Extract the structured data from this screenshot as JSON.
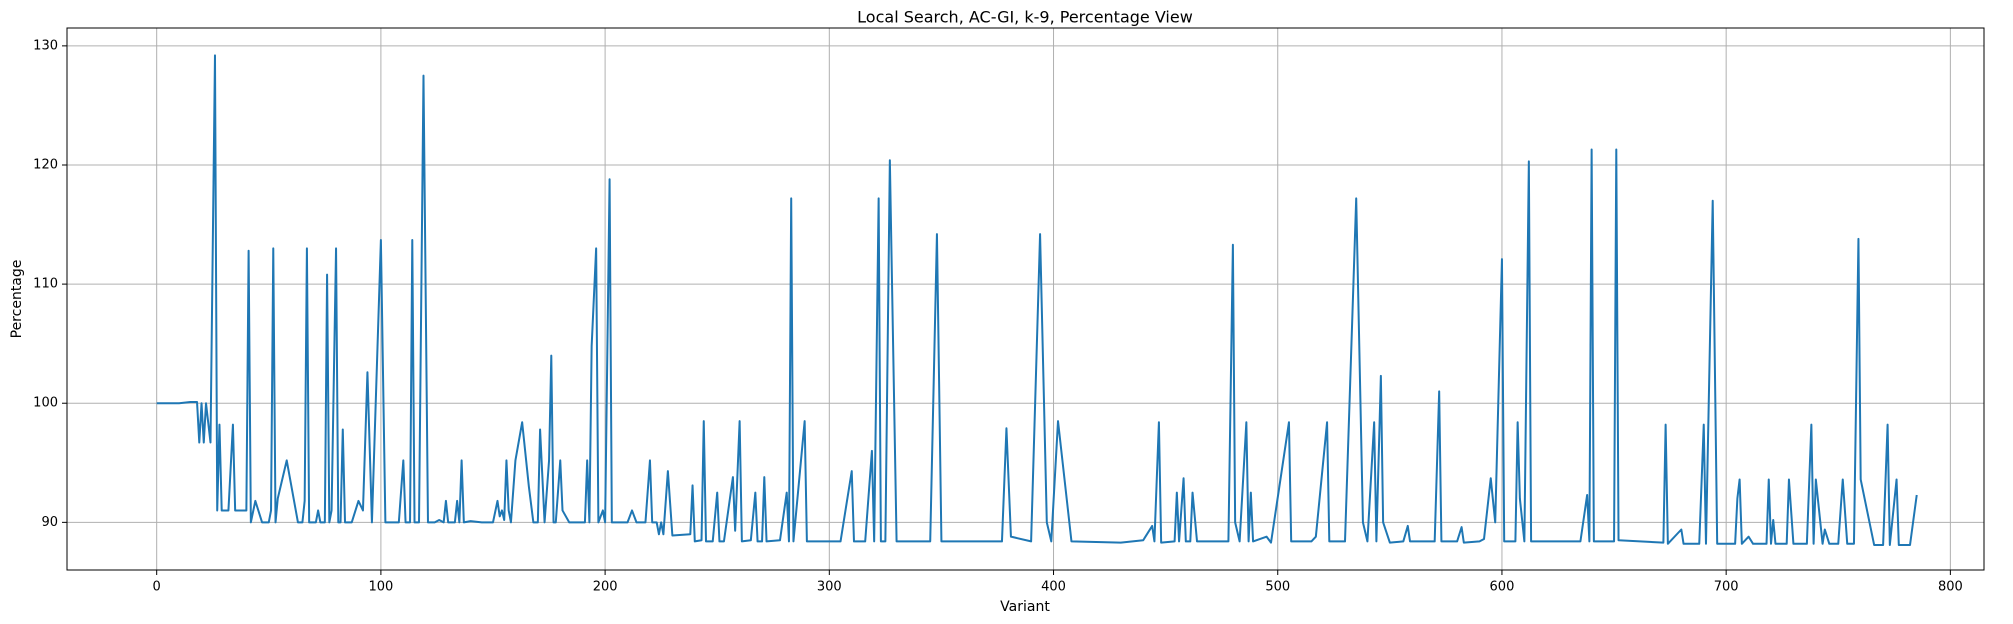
{
  "chart_data": {
    "type": "line",
    "title": "Local Search, AC-GI, k-9, Percentage View",
    "x_label": "Variant",
    "y_label": "Percentage",
    "xlim": [
      -40,
      815
    ],
    "ylim": [
      86,
      131.5
    ],
    "xticks": [
      0,
      100,
      200,
      300,
      400,
      500,
      600,
      700,
      800
    ],
    "yticks": [
      90,
      100,
      110,
      120,
      130
    ],
    "grid": true,
    "series": [
      {
        "name": "Percentage",
        "color": "#1f77b4",
        "x": [
          0,
          10,
          15,
          18,
          19,
          20,
          21,
          22,
          24,
          26,
          27,
          28,
          29,
          32,
          34,
          35,
          40,
          41,
          42,
          44,
          47,
          50,
          51,
          52,
          53,
          54,
          58,
          63,
          65,
          66,
          67,
          68,
          71,
          72,
          73,
          75,
          76,
          77,
          78,
          80,
          81,
          82,
          83,
          84,
          87,
          90,
          92,
          94,
          96,
          100,
          102,
          108,
          110,
          111,
          113,
          114,
          115,
          117,
          119,
          121,
          124,
          126,
          128,
          129,
          130,
          133,
          134,
          135,
          136,
          137,
          140,
          145,
          150,
          152,
          153,
          154,
          155,
          156,
          157,
          158,
          160,
          163,
          166,
          168,
          170,
          171,
          173,
          175,
          176,
          177,
          178,
          180,
          181,
          184,
          191,
          192,
          193,
          194,
          196,
          197,
          199,
          200,
          202,
          203,
          210,
          212,
          214,
          218,
          220,
          221,
          223,
          224,
          225,
          226,
          228,
          230,
          238,
          239,
          240,
          243,
          244,
          245,
          248,
          250,
          251,
          253,
          257,
          258,
          260,
          261,
          265,
          267,
          268,
          270,
          271,
          272,
          278,
          281,
          282,
          283,
          284,
          289,
          290,
          305,
          310,
          311,
          316,
          319,
          320,
          322,
          323,
          325,
          327,
          330,
          345,
          348,
          350,
          377,
          379,
          381,
          390,
          394,
          397,
          399,
          402,
          408,
          430,
          440,
          444,
          445,
          447,
          448,
          454,
          455,
          456,
          458,
          459,
          461,
          462,
          464,
          478,
          480,
          481,
          483,
          486,
          487,
          488,
          489,
          495,
          497,
          505,
          506,
          515,
          517,
          522,
          523,
          530,
          535,
          538,
          540,
          543,
          544,
          546,
          547,
          550,
          556,
          558,
          559,
          570,
          572,
          573,
          580,
          582,
          583,
          590,
          592,
          595,
          597,
          600,
          601,
          606,
          607,
          608,
          610,
          612,
          613,
          635,
          638,
          639,
          640,
          641,
          650,
          651,
          652,
          672,
          673,
          674,
          680,
          681,
          688,
          690,
          691,
          694,
          696,
          704,
          705,
          706,
          707,
          710,
          712,
          718,
          719,
          720,
          721,
          722,
          727,
          728,
          730,
          736,
          738,
          739,
          740,
          743,
          744,
          746,
          750,
          752,
          754,
          757,
          759,
          760,
          766,
          770,
          772,
          773,
          776,
          777,
          782,
          785
        ],
        "values": [
          100,
          100,
          100.1,
          100.1,
          96.7,
          100,
          96.7,
          100,
          96.7,
          129.2,
          91,
          98.2,
          91,
          91,
          98.2,
          91,
          91,
          112.8,
          90,
          91.8,
          90,
          90,
          91,
          113,
          90,
          92,
          95.2,
          90,
          90,
          91.8,
          113,
          90,
          90,
          91,
          90,
          90,
          110.8,
          90,
          91,
          113,
          90,
          90,
          97.8,
          90,
          90,
          91.8,
          91,
          102.6,
          90,
          113.7,
          90,
          90,
          95.2,
          90,
          90,
          113.7,
          90,
          90,
          127.5,
          90,
          90,
          90.2,
          90,
          91.8,
          90,
          90,
          91.8,
          90,
          95.2,
          90,
          90.1,
          90,
          90,
          91.8,
          90.5,
          91,
          90.2,
          95.2,
          91,
          90,
          95.2,
          98.4,
          93,
          90,
          90,
          97.8,
          90,
          95.2,
          104,
          90,
          90,
          95.2,
          91,
          90,
          90,
          95.2,
          90,
          104.8,
          113,
          90,
          91,
          90,
          118.8,
          90,
          90,
          91,
          90,
          90,
          95.2,
          90,
          90,
          89,
          90,
          89,
          94.3,
          88.9,
          89,
          93.1,
          88.4,
          88.5,
          98.5,
          88.4,
          88.4,
          92.5,
          88.4,
          88.4,
          93.8,
          89.3,
          98.5,
          88.4,
          88.5,
          92.5,
          88.4,
          88.4,
          93.8,
          88.4,
          88.5,
          92.5,
          88.4,
          117.2,
          88.4,
          98.5,
          88.4,
          88.4,
          94.3,
          88.4,
          88.4,
          96,
          88.4,
          117.2,
          88.4,
          88.4,
          120.4,
          88.4,
          88.4,
          114.2,
          88.4,
          88.4,
          97.9,
          88.8,
          88.4,
          114.2,
          90,
          88.4,
          98.5,
          88.4,
          88.3,
          88.5,
          89.7,
          88.4,
          98.4,
          88.3,
          88.4,
          92.5,
          88.4,
          93.7,
          88.4,
          88.4,
          92.5,
          88.4,
          88.4,
          113.3,
          90,
          88.4,
          98.4,
          88.4,
          92.5,
          88.4,
          88.8,
          88.3,
          98.4,
          88.4,
          88.4,
          88.8,
          98.4,
          88.4,
          88.4,
          117.2,
          90,
          88.4,
          98.4,
          88.4,
          102.3,
          90,
          88.3,
          88.4,
          89.7,
          88.4,
          88.4,
          101,
          88.4,
          88.4,
          89.6,
          88.3,
          88.4,
          88.6,
          93.7,
          90,
          112.1,
          88.4,
          88.4,
          98.4,
          92,
          88.4,
          120.3,
          88.4,
          88.4,
          92.3,
          88.4,
          121.3,
          88.4,
          88.4,
          121.3,
          88.5,
          88.3,
          98.2,
          88.2,
          89.4,
          88.2,
          88.2,
          98.2,
          88.2,
          117,
          88.2,
          88.2,
          92,
          93.6,
          88.2,
          88.8,
          88.2,
          88.2,
          93.6,
          88.2,
          90.2,
          88.2,
          88.2,
          93.6,
          88.2,
          88.2,
          98.2,
          88.2,
          93.6,
          88.2,
          89.4,
          88.2,
          88.2,
          93.6,
          88.2,
          88.2,
          113.8,
          93.6,
          88.1,
          88.1,
          98.2,
          88.1,
          93.6,
          88.1,
          88.1,
          92.3
        ]
      }
    ]
  }
}
